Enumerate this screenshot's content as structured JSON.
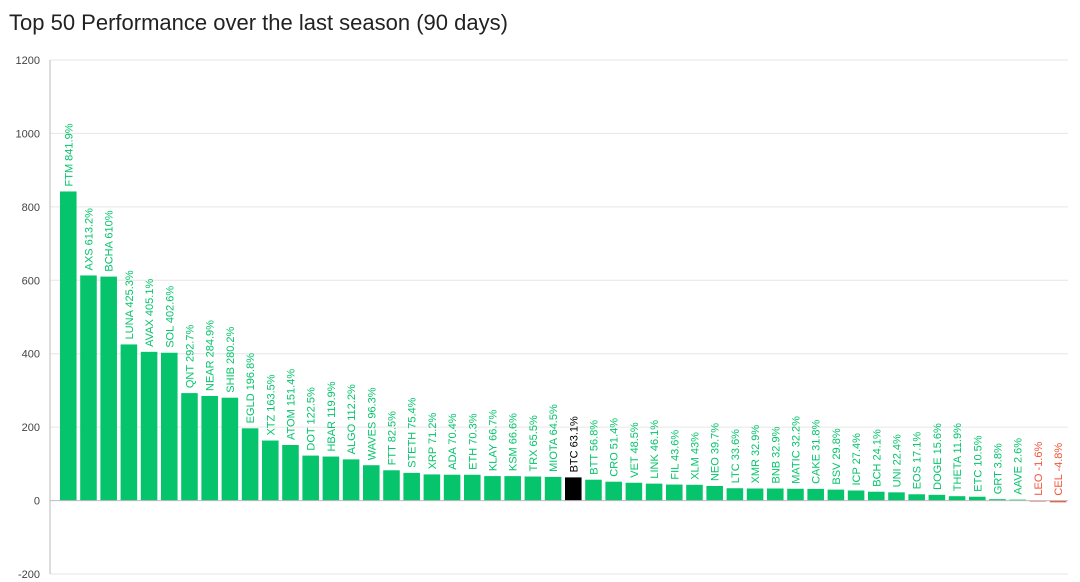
{
  "chart_data": {
    "type": "bar",
    "title": "Top 50 Performance over the last season (90 days)",
    "xlabel": "",
    "ylabel": "",
    "ylim": [
      -200,
      1200
    ],
    "yticks": [
      -200,
      0,
      200,
      400,
      600,
      800,
      1000,
      1200
    ],
    "grid": true,
    "categories": [
      "FTM",
      "AXS",
      "BCHA",
      "LUNA",
      "AVAX",
      "SOL",
      "QNT",
      "NEAR",
      "SHIB",
      "EGLD",
      "XTZ",
      "ATOM",
      "DOT",
      "HBAR",
      "ALGO",
      "WAVES",
      "FTT",
      "STETH",
      "XRP",
      "ADA",
      "ETH",
      "KLAY",
      "KSM",
      "TRX",
      "MIOTA",
      "BTC",
      "BTT",
      "CRO",
      "VET",
      "LINK",
      "FIL",
      "XLM",
      "NEO",
      "LTC",
      "XMR",
      "BNB",
      "MATIC",
      "CAKE",
      "BSV",
      "ICP",
      "BCH",
      "UNI",
      "EOS",
      "DOGE",
      "THETA",
      "ETC",
      "GRT",
      "AAVE",
      "LEO",
      "CEL"
    ],
    "values": [
      841.9,
      613.2,
      610,
      425.3,
      405.1,
      402.6,
      292.7,
      284.9,
      280.2,
      196.8,
      163.5,
      151.4,
      122.5,
      119.9,
      112.2,
      96.3,
      82.5,
      75.4,
      71.2,
      70.4,
      70.3,
      66.7,
      66.6,
      65.5,
      64.5,
      63.1,
      56.8,
      51.4,
      48.5,
      46.1,
      43.6,
      43,
      39.7,
      33.6,
      32.9,
      32.9,
      32.2,
      31.8,
      29.8,
      27.4,
      24.1,
      22.4,
      17.1,
      15.6,
      11.9,
      10.5,
      3.8,
      2.6,
      -1.6,
      -4.8
    ],
    "data_labels": [
      "FTM 841.9%",
      "AXS 613.2%",
      "BCHA 610%",
      "LUNA 425.3%",
      "AVAX 405.1%",
      "SOL 402.6%",
      "QNT 292.7%",
      "NEAR 284.9%",
      "SHIB 280.2%",
      "EGLD 196.8%",
      "XTZ 163.5%",
      "ATOM 151.4%",
      "DOT 122.5%",
      "HBAR 119.9%",
      "ALGO 112.2%",
      "WAVES 96.3%",
      "FTT 82.5%",
      "STETH 75.4%",
      "XRP 71.2%",
      "ADA 70.4%",
      "ETH 70.3%",
      "KLAY 66.7%",
      "KSM 66.6%",
      "TRX 65.5%",
      "MIOTA 64.5%",
      "BTC 63.1%",
      "BTT 56.8%",
      "CRO 51.4%",
      "VET 48.5%",
      "LINK 46.1%",
      "FIL 43.6%",
      "XLM 43%",
      "NEO 39.7%",
      "LTC 33.6%",
      "XMR 32.9%",
      "BNB 32.9%",
      "MATIC 32.2%",
      "CAKE 31.8%",
      "BSV 29.8%",
      "ICP 27.4%",
      "BCH 24.1%",
      "UNI 22.4%",
      "EOS 17.1%",
      "DOGE 15.6%",
      "THETA 11.9%",
      "ETC 10.5%",
      "GRT 3.8%",
      "AAVE 2.6%",
      "LEO -1.6%",
      "CEL -4.8%"
    ],
    "highlight": "BTC"
  },
  "colors": {
    "positive": "#05c46b",
    "negative": "#f0543a",
    "highlight": "#000000",
    "grid": "#e6e6e6",
    "axis": "#bbbbbb",
    "tick_label": "#444444",
    "title": "#222222"
  }
}
